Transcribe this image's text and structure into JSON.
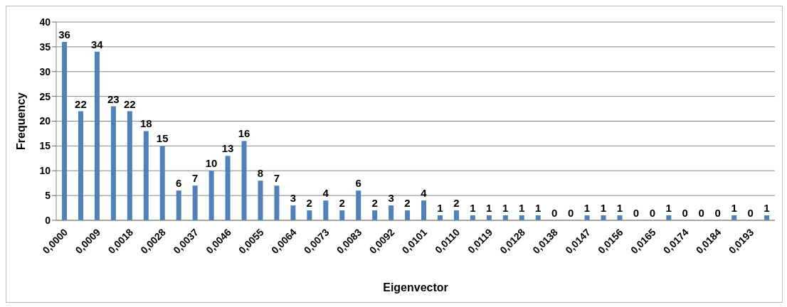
{
  "chart_data": {
    "type": "bar",
    "xlabel": "Eigenvector",
    "ylabel": "Frequency",
    "categories": [
      "0,0000",
      null,
      "0,0009",
      null,
      "0,0018",
      null,
      "0,0028",
      null,
      "0,0037",
      null,
      "0,0046",
      null,
      "0,0055",
      null,
      "0,0064",
      null,
      "0,0073",
      null,
      "0,0083",
      null,
      "0,0092",
      null,
      "0,0101",
      null,
      "0,0110",
      null,
      "0,0119",
      null,
      "0,0128",
      null,
      "0,0138",
      null,
      "0,0147",
      null,
      "0,0156",
      null,
      "0,0165",
      null,
      "0,0174",
      null,
      "0,0184",
      null,
      "0,0193",
      null
    ],
    "values": [
      36,
      22,
      34,
      23,
      22,
      18,
      15,
      6,
      7,
      10,
      13,
      16,
      8,
      7,
      3,
      2,
      4,
      2,
      6,
      2,
      3,
      2,
      4,
      1,
      2,
      1,
      1,
      1,
      1,
      1,
      0,
      0,
      1,
      1,
      1,
      0,
      0,
      1,
      0,
      0,
      0,
      1,
      0,
      1
    ],
    "color": "#4f81bd",
    "ylim": [
      0,
      40
    ],
    "yticks": [
      0,
      5,
      10,
      15,
      20,
      25,
      30,
      35,
      40
    ],
    "grid": "y",
    "data_labels": true
  }
}
